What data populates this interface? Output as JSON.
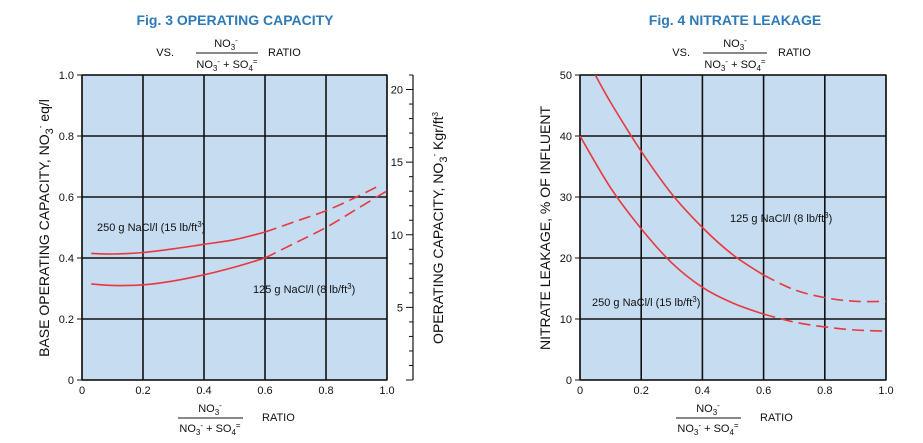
{
  "chart_data": [
    {
      "type": "line",
      "title": "Fig. 3 OPERATING CAPACITY",
      "subtitle": {
        "prefix": "VS.",
        "numerator": "NO3-",
        "denominator": "NO3- + SO4=",
        "suffix": "RATIO"
      },
      "xlabel": {
        "numerator": "NO3-",
        "denominator": "NO3- + SO4=",
        "suffix": "RATIO"
      },
      "ylabel": "BASE OPERATING CAPACITY, NO3- eq/l",
      "y2label": "OPERATING CAPACITY, NO3- Kgr/ft3",
      "xlim": [
        0,
        1.0
      ],
      "ylim": [
        0,
        1.0
      ],
      "y2lim": [
        0,
        21
      ],
      "xticks": [
        "0",
        "0.2",
        "0.4",
        "0.6",
        "0.8",
        "1.0"
      ],
      "yticks": [
        "0",
        "0.2",
        "0.4",
        "0.6",
        "0.8",
        "1.0"
      ],
      "y2ticks": [
        "5",
        "10",
        "15",
        "20"
      ],
      "background": "#c5dcf1",
      "grid": true,
      "series": [
        {
          "name": "250 g NaCl/l (15 lb/ft³)",
          "color": "#e8383d",
          "solid": {
            "x": [
              0.03,
              0.1,
              0.2,
              0.3,
              0.4,
              0.5,
              0.6
            ],
            "y": [
              0.415,
              0.413,
              0.418,
              0.43,
              0.445,
              0.46,
              0.485
            ]
          },
          "dashed": {
            "x": [
              0.6,
              0.7,
              0.8,
              0.9,
              0.98
            ],
            "y": [
              0.485,
              0.52,
              0.555,
              0.6,
              0.64
            ]
          }
        },
        {
          "name": "125 g NaCl/l (8 lb/ft³)",
          "color": "#e8383d",
          "solid": {
            "x": [
              0.03,
              0.1,
              0.2,
              0.3,
              0.4,
              0.5,
              0.6
            ],
            "y": [
              0.315,
              0.31,
              0.312,
              0.325,
              0.345,
              0.37,
              0.4
            ]
          },
          "dashed": {
            "x": [
              0.6,
              0.7,
              0.8,
              0.9,
              1.0
            ],
            "y": [
              0.4,
              0.45,
              0.5,
              0.56,
              0.62
            ]
          }
        }
      ]
    },
    {
      "type": "line",
      "title": "Fig. 4 NITRATE LEAKAGE",
      "subtitle": {
        "prefix": "VS.",
        "numerator": "NO3-",
        "denominator": "NO3- + SO4=",
        "suffix": "RATIO"
      },
      "xlabel": {
        "numerator": "NO3-",
        "denominator": "NO3- + SO4=",
        "suffix": "RATIO"
      },
      "ylabel": "NITRATE LEAKAGE, % OF INFLUENT",
      "xlim": [
        0,
        1.0
      ],
      "ylim": [
        0,
        50
      ],
      "xticks": [
        "0",
        "0.2",
        "0.4",
        "0.6",
        "0.8",
        "1.0"
      ],
      "yticks": [
        "0",
        "10",
        "20",
        "30",
        "40",
        "50"
      ],
      "background": "#c5dcf1",
      "grid": true,
      "series": [
        {
          "name": "125 g NaCl/l (8 lb/ft³)",
          "color": "#e8383d",
          "solid": {
            "x": [
              0.05,
              0.1,
              0.2,
              0.3,
              0.4,
              0.5,
              0.6
            ],
            "y": [
              50,
              45.5,
              37.5,
              30.5,
              25.0,
              20.5,
              17.2
            ]
          },
          "dashed": {
            "x": [
              0.6,
              0.7,
              0.8,
              0.9,
              1.0
            ],
            "y": [
              17.2,
              14.8,
              13.5,
              12.9,
              12.9
            ]
          }
        },
        {
          "name": "250 g NaCl/l (15 lb/ft³)",
          "color": "#e8383d",
          "solid": {
            "x": [
              0.0,
              0.1,
              0.2,
              0.3,
              0.4,
              0.5,
              0.6
            ],
            "y": [
              40,
              31.5,
              24.8,
              19.2,
              15.2,
              12.6,
              10.8
            ]
          },
          "dashed": {
            "x": [
              0.6,
              0.7,
              0.8,
              0.9,
              1.0
            ],
            "y": [
              10.8,
              9.5,
              8.7,
              8.2,
              8.0
            ]
          }
        }
      ]
    }
  ]
}
